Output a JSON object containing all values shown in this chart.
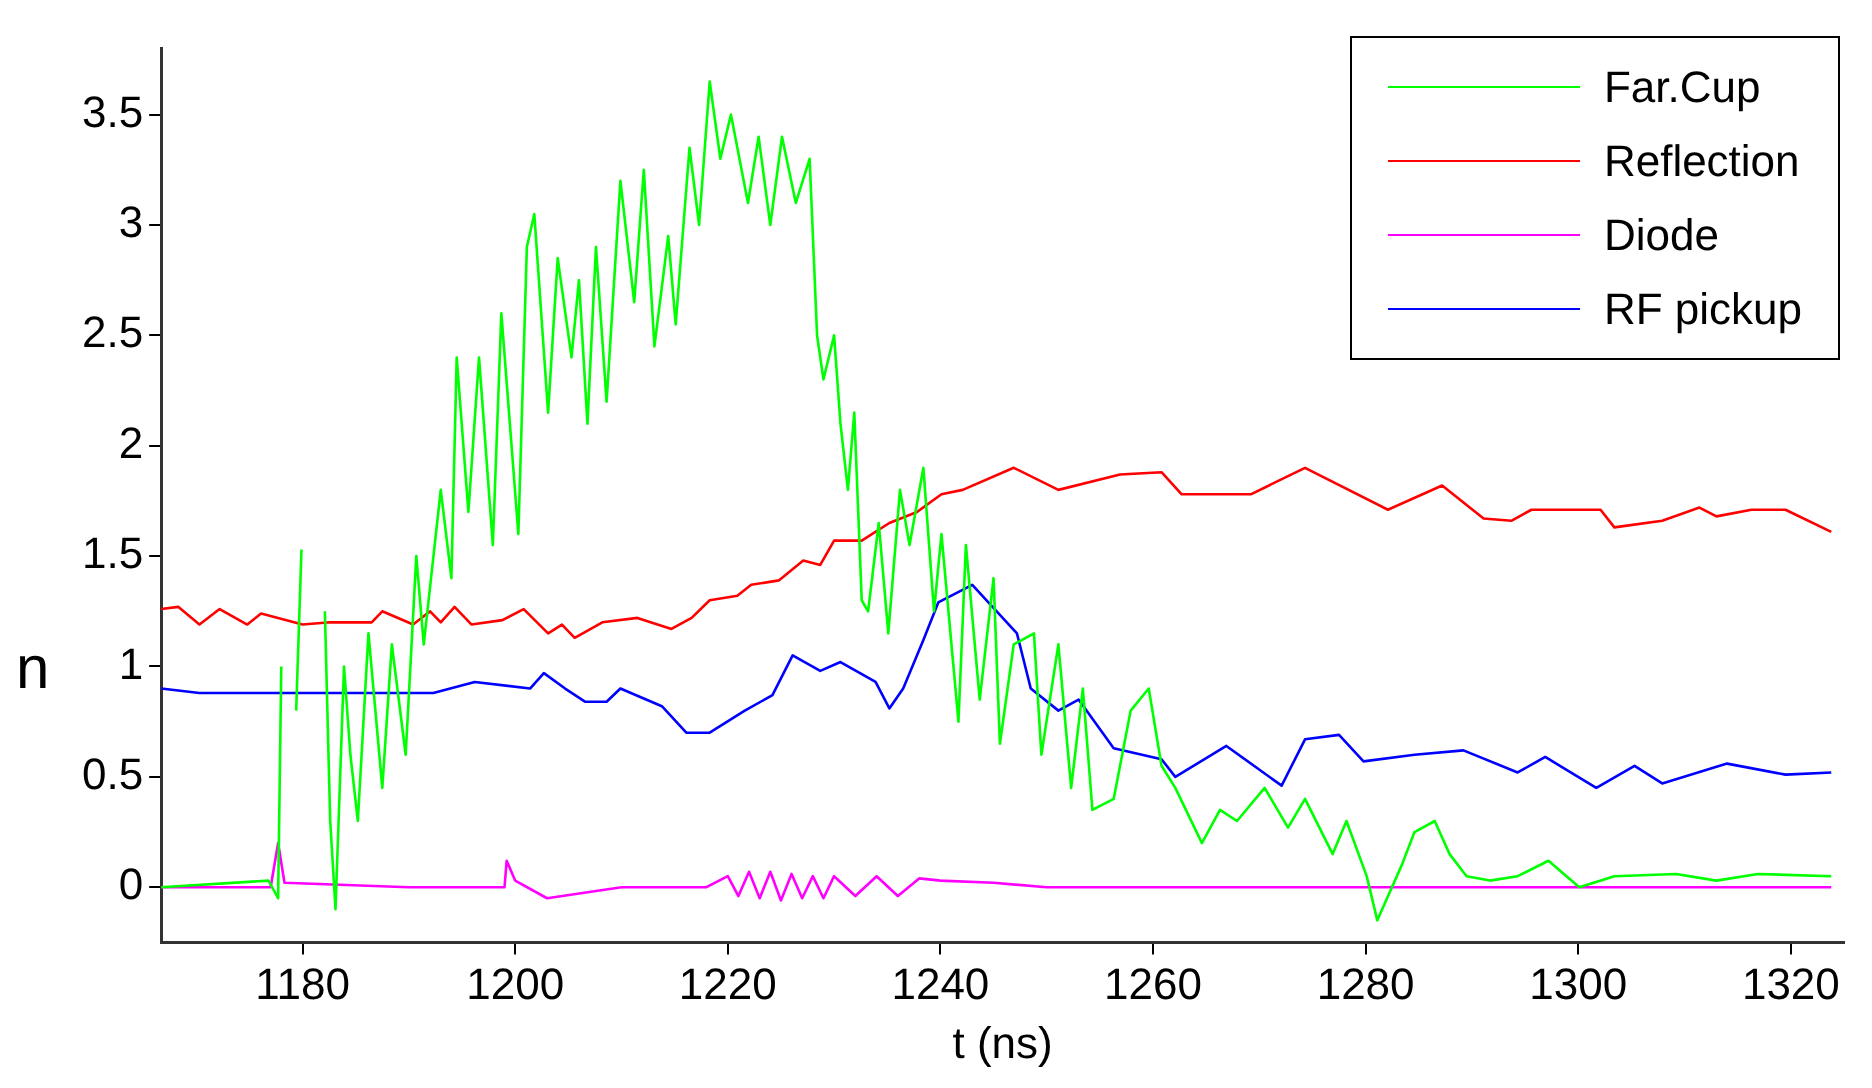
{
  "chart_data": {
    "type": "line",
    "xlabel": "t (ns)",
    "ylabel": "n",
    "xlim": [
      1166.7,
      1325
    ],
    "ylim": [
      -0.25,
      3.8
    ],
    "xticks": [
      1180,
      1200,
      1220,
      1240,
      1260,
      1280,
      1300,
      1320
    ],
    "yticks": [
      0,
      0.5,
      1,
      1.5,
      2,
      2.5,
      3,
      3.5
    ],
    "legend": "top right",
    "series": [
      {
        "name": "Far.Cup",
        "color": "#00ff00",
        "x": [
          1166.7,
          1176.8,
          1177.7,
          1178,
          1178.5,
          1179.4,
          1179.9,
          1180.3,
          1181.3,
          1182.1,
          1182.6,
          1183.1,
          1183.9,
          1184.5,
          1185.2,
          1186.2,
          1187.5,
          1188.4,
          1189.7,
          1190.7,
          1191.4,
          1193,
          1194,
          1194.5,
          1195.6,
          1196.6,
          1197.9,
          1198.7,
          1200.3,
          1201.1,
          1201.8,
          1203.1,
          1204,
          1205.3,
          1206,
          1206.8,
          1207.6,
          1208.6,
          1209.9,
          1211.2,
          1212.1,
          1213.1,
          1214.4,
          1215.1,
          1216.4,
          1217.3,
          1218.3,
          1219.3,
          1220.3,
          1221.9,
          1222.9,
          1224,
          1225.1,
          1226.4,
          1227.7,
          1228.4,
          1229,
          1230,
          1230.6,
          1231.3,
          1231.9,
          1232.6,
          1233.2,
          1234.2,
          1235.1,
          1236.2,
          1237.1,
          1238.4,
          1239.4,
          1240.1,
          1241.7,
          1242.4,
          1243.7,
          1245,
          1245.6,
          1246.9,
          1248.8,
          1249.5,
          1251.1,
          1252.3,
          1253.4,
          1254.3,
          1256.3,
          1257.9,
          1259.6,
          1260.8,
          1262.1,
          1264.6,
          1266.3,
          1267.9,
          1270.5,
          1272.7,
          1274.3,
          1276.9,
          1278.2,
          1280.1,
          1281.1,
          1283.4,
          1284.6,
          1286.5,
          1287.9,
          1289.5,
          1291.7,
          1294.3,
          1297.2,
          1300.1,
          1303.4,
          1309.2,
          1313,
          1316.9,
          1323.8
        ],
        "values": [
          0,
          0.03,
          -0.05,
          1,
          null,
          0.8,
          1.53,
          null,
          null,
          1.25,
          0.3,
          -0.1,
          1,
          0.6,
          0.3,
          1.15,
          0.45,
          1.1,
          0.6,
          1.5,
          1.1,
          1.8,
          1.4,
          2.4,
          1.7,
          2.4,
          1.55,
          2.6,
          1.6,
          2.9,
          3.05,
          2.15,
          2.85,
          2.4,
          2.75,
          2.1,
          2.9,
          2.2,
          3.2,
          2.65,
          3.25,
          2.45,
          2.95,
          2.55,
          3.35,
          3,
          3.65,
          3.3,
          3.5,
          3.1,
          3.4,
          3,
          3.4,
          3.1,
          3.3,
          2.5,
          2.3,
          2.5,
          2.1,
          1.8,
          2.15,
          1.3,
          1.25,
          1.65,
          1.15,
          1.8,
          1.55,
          1.9,
          1.25,
          1.6,
          0.75,
          1.55,
          0.85,
          1.4,
          0.65,
          1.1,
          1.15,
          0.6,
          1.1,
          0.45,
          0.9,
          0.35,
          0.4,
          0.8,
          0.9,
          0.55,
          0.45,
          0.2,
          0.35,
          0.3,
          0.45,
          0.27,
          0.4,
          0.15,
          0.3,
          0.05,
          -0.15,
          0.1,
          0.25,
          0.3,
          0.15,
          0.05,
          0.03,
          0.05,
          0.12,
          0,
          0.05,
          0.06,
          0.03,
          0.06,
          0.05
        ]
      },
      {
        "name": "Reflection",
        "color": "#ff0000",
        "x": [
          1166.7,
          1168.3,
          1170.3,
          1172.2,
          1174.8,
          1176.1,
          1180,
          1182.6,
          1186.5,
          1187.5,
          1190.4,
          1192,
          1193,
          1194.3,
          1195.9,
          1198.8,
          1200.8,
          1203.1,
          1204.4,
          1205.6,
          1208.2,
          1211.5,
          1214.7,
          1216.6,
          1218.3,
          1220.9,
          1222.2,
          1224.8,
          1227.1,
          1228.7,
          1230,
          1232.6,
          1235.2,
          1237.8,
          1240.1,
          1242.1,
          1246.9,
          1251.1,
          1256.9,
          1260.8,
          1262.7,
          1269.2,
          1274.3,
          1282.1,
          1287.2,
          1291.1,
          1293.7,
          1295.6,
          1302.1,
          1303.4,
          1307.9,
          1311.4,
          1313,
          1316.3,
          1319.5,
          1323.8
        ],
        "values": [
          1.26,
          1.27,
          1.19,
          1.26,
          1.19,
          1.24,
          1.19,
          1.2,
          1.2,
          1.25,
          1.19,
          1.25,
          1.2,
          1.27,
          1.19,
          1.21,
          1.26,
          1.15,
          1.19,
          1.13,
          1.2,
          1.22,
          1.17,
          1.22,
          1.3,
          1.32,
          1.37,
          1.39,
          1.48,
          1.46,
          1.57,
          1.57,
          1.65,
          1.7,
          1.78,
          1.8,
          1.9,
          1.8,
          1.87,
          1.88,
          1.78,
          1.78,
          1.9,
          1.71,
          1.82,
          1.67,
          1.66,
          1.71,
          1.71,
          1.63,
          1.66,
          1.72,
          1.68,
          1.71,
          1.71,
          1.61
        ]
      },
      {
        "name": "Diode",
        "color": "#ff00ff",
        "x": [
          1166.7,
          1177,
          1177.7,
          1178.3,
          1190,
          1199,
          1199.2,
          1200,
          1203,
          1210,
          1218,
          1220,
          1221,
          1222,
          1223,
          1224,
          1225,
          1226,
          1227,
          1228,
          1229,
          1230,
          1232,
          1234,
          1236,
          1238,
          1240,
          1245,
          1250,
          1260,
          1280,
          1300,
          1323.8
        ],
        "values": [
          0,
          0,
          0.2,
          0.02,
          0,
          0,
          0.12,
          0.03,
          -0.05,
          0,
          0,
          0.05,
          -0.04,
          0.07,
          -0.05,
          0.07,
          -0.06,
          0.06,
          -0.05,
          0.05,
          -0.05,
          0.05,
          -0.04,
          0.05,
          -0.04,
          0.04,
          0.03,
          0.02,
          0,
          0,
          0,
          0,
          0
        ]
      },
      {
        "name": "RF pickup",
        "color": "#0000ff",
        "x": [
          1166.7,
          1170.3,
          1178,
          1192.3,
          1196.2,
          1201.4,
          1202.7,
          1204.7,
          1206.6,
          1208.6,
          1209.9,
          1213.8,
          1216.1,
          1218.3,
          1221.6,
          1224.2,
          1226.1,
          1228.7,
          1230.6,
          1233.9,
          1235.2,
          1236.5,
          1238.4,
          1239.8,
          1243,
          1247.2,
          1248.5,
          1251.1,
          1253,
          1256.3,
          1260.8,
          1262.1,
          1266.9,
          1272.1,
          1274.3,
          1277.5,
          1279.8,
          1284.6,
          1289.2,
          1294.3,
          1296.9,
          1301.7,
          1305.3,
          1307.9,
          1314,
          1319.5,
          1323.8
        ],
        "values": [
          0.9,
          0.88,
          0.88,
          0.88,
          0.93,
          0.9,
          0.97,
          0.9,
          0.84,
          0.84,
          0.9,
          0.82,
          0.7,
          0.7,
          0.8,
          0.87,
          1.05,
          0.98,
          1.02,
          0.93,
          0.81,
          0.9,
          1.12,
          1.29,
          1.37,
          1.15,
          0.9,
          0.8,
          0.85,
          0.63,
          0.58,
          0.5,
          0.64,
          0.46,
          0.67,
          0.69,
          0.57,
          0.6,
          0.62,
          0.52,
          0.59,
          0.45,
          0.55,
          0.47,
          0.56,
          0.51,
          0.52
        ]
      }
    ]
  }
}
